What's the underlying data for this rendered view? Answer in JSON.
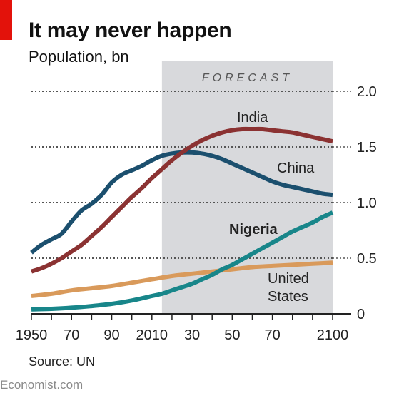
{
  "header": {
    "title": "It may never happen",
    "subtitle": "Population, bn"
  },
  "footer": {
    "source": "Source: UN",
    "brand": "Economist.com"
  },
  "colors": {
    "accent_red": "#e3120b",
    "forecast_band": "#d8d9dc",
    "China": "#1b4f6e",
    "India": "#8b3232",
    "Nigeria": "#18868a",
    "United States": "#d99a5b"
  },
  "chart_data": {
    "type": "line",
    "title": "It may never happen",
    "ylabel": "Population, bn",
    "xlim": [
      1950,
      2100
    ],
    "ylim": [
      0,
      2.0
    ],
    "yticks": [
      "0",
      "0.5",
      "1.0",
      "1.5",
      "2.0"
    ],
    "ytick_values": [
      0,
      0.5,
      1.0,
      1.5,
      2.0
    ],
    "xticks": [
      "1950",
      "70",
      "90",
      "2010",
      "30",
      "50",
      "70",
      "2100"
    ],
    "xtick_values": [
      1950,
      1970,
      1990,
      2010,
      2030,
      2050,
      2070,
      2100
    ],
    "grid": "horizontal dotted",
    "forecast_band": {
      "label": "FORECAST",
      "start": 2015,
      "end": 2100
    },
    "series": [
      {
        "name": "China",
        "x": [
          1950,
          1955,
          1960,
          1965,
          1970,
          1975,
          1980,
          1985,
          1990,
          1995,
          2000,
          2005,
          2010,
          2015,
          2020,
          2025,
          2030,
          2035,
          2040,
          2045,
          2050,
          2055,
          2060,
          2065,
          2070,
          2075,
          2080,
          2085,
          2090,
          2095,
          2100
        ],
        "y": [
          0.55,
          0.62,
          0.67,
          0.72,
          0.83,
          0.93,
          0.99,
          1.07,
          1.18,
          1.25,
          1.29,
          1.33,
          1.38,
          1.42,
          1.44,
          1.45,
          1.45,
          1.44,
          1.42,
          1.39,
          1.35,
          1.31,
          1.27,
          1.23,
          1.19,
          1.16,
          1.14,
          1.12,
          1.1,
          1.08,
          1.07
        ]
      },
      {
        "name": "India",
        "x": [
          1950,
          1955,
          1960,
          1965,
          1970,
          1975,
          1980,
          1985,
          1990,
          1995,
          2000,
          2005,
          2010,
          2015,
          2020,
          2025,
          2030,
          2035,
          2040,
          2045,
          2050,
          2055,
          2060,
          2065,
          2070,
          2075,
          2080,
          2085,
          2090,
          2095,
          2100
        ],
        "y": [
          0.38,
          0.41,
          0.45,
          0.5,
          0.56,
          0.62,
          0.7,
          0.78,
          0.87,
          0.96,
          1.05,
          1.13,
          1.22,
          1.3,
          1.38,
          1.45,
          1.51,
          1.56,
          1.6,
          1.63,
          1.65,
          1.66,
          1.66,
          1.66,
          1.65,
          1.64,
          1.63,
          1.61,
          1.59,
          1.57,
          1.55
        ]
      },
      {
        "name": "Nigeria",
        "x": [
          1950,
          1960,
          1970,
          1980,
          1990,
          2000,
          2010,
          2015,
          2020,
          2025,
          2030,
          2035,
          2040,
          2045,
          2050,
          2055,
          2060,
          2065,
          2070,
          2075,
          2080,
          2085,
          2090,
          2095,
          2100
        ],
        "y": [
          0.04,
          0.045,
          0.055,
          0.07,
          0.09,
          0.12,
          0.16,
          0.18,
          0.21,
          0.24,
          0.27,
          0.31,
          0.35,
          0.4,
          0.44,
          0.49,
          0.54,
          0.59,
          0.64,
          0.69,
          0.74,
          0.78,
          0.82,
          0.87,
          0.91
        ]
      },
      {
        "name": "United States",
        "x": [
          1950,
          1960,
          1970,
          1980,
          1990,
          2000,
          2010,
          2020,
          2030,
          2040,
          2050,
          2060,
          2070,
          2080,
          2090,
          2100
        ],
        "y": [
          0.16,
          0.18,
          0.21,
          0.23,
          0.25,
          0.28,
          0.31,
          0.34,
          0.36,
          0.38,
          0.4,
          0.42,
          0.43,
          0.44,
          0.45,
          0.46
        ]
      }
    ],
    "series_labels": [
      {
        "series": "India",
        "text": "India"
      },
      {
        "series": "China",
        "text": "China"
      },
      {
        "series": "Nigeria",
        "text": "Nigeria"
      },
      {
        "series": "United States",
        "text": "United"
      },
      {
        "series": "United States",
        "text": "States"
      }
    ]
  }
}
